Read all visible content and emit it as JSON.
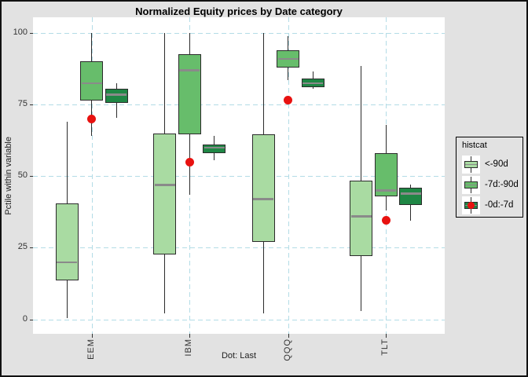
{
  "window": {
    "background": "#e2e2e2",
    "border_color": "#111111"
  },
  "chart_data": {
    "type": "boxplot",
    "title": "Normalized Equity prices by Date category",
    "ylabel": "Pctile within variable",
    "caption": "Dot: Last",
    "ylim": [
      0,
      100
    ],
    "yticks": [
      0,
      25,
      50,
      75,
      100
    ],
    "categories": [
      "EEM",
      "IBM",
      "QQQ",
      "TLT"
    ],
    "grid": "major gridlines, dashed light blue, on white panel",
    "panel_background": "#ffffff",
    "gridline_color": "#b3dce6",
    "legend": {
      "title": "histcat",
      "position": "right",
      "entries": [
        {
          "label": "<-90d",
          "fill": "#a9dba2"
        },
        {
          "label": "-7d:-90d",
          "fill": "#67bd6b"
        },
        {
          "label": "-0d:-7d",
          "fill": "#1f8745",
          "dot_color": "#e81210"
        }
      ]
    },
    "series": [
      {
        "name": "<-90d",
        "fill": "#a9dba2",
        "boxes": [
          {
            "category": "EEM",
            "whisker_low": 0.5,
            "q1": 13.5,
            "median": 20,
            "q3": 40.5,
            "whisker_high": 69
          },
          {
            "category": "IBM",
            "whisker_low": 2,
            "q1": 22.5,
            "median": 47,
            "q3": 65,
            "whisker_high": 100
          },
          {
            "category": "QQQ",
            "whisker_low": 2,
            "q1": 27,
            "median": 42,
            "q3": 64.5,
            "whisker_high": 100
          },
          {
            "category": "TLT",
            "whisker_low": 3,
            "q1": 22,
            "median": 36,
            "q3": 48.5,
            "whisker_high": 88.5
          }
        ]
      },
      {
        "name": "-7d:-90d",
        "fill": "#67bd6b",
        "boxes": [
          {
            "category": "EEM",
            "whisker_low": 64,
            "q1": 76.5,
            "median": 82.5,
            "q3": 90,
            "whisker_high": 100
          },
          {
            "category": "IBM",
            "whisker_low": 43.5,
            "q1": 64.5,
            "median": 87,
            "q3": 92.5,
            "whisker_high": 100
          },
          {
            "category": "QQQ",
            "whisker_low": 83.5,
            "q1": 88,
            "median": 91,
            "q3": 94,
            "whisker_high": 99
          },
          {
            "category": "TLT",
            "whisker_low": 38,
            "q1": 43,
            "median": 45,
            "q3": 58,
            "whisker_high": 68
          }
        ]
      },
      {
        "name": "-0d:-7d",
        "fill": "#1f8745",
        "boxes": [
          {
            "category": "EEM",
            "whisker_low": 70.5,
            "q1": 75.5,
            "median": 78.5,
            "q3": 80.5,
            "whisker_high": 82.5
          },
          {
            "category": "IBM",
            "whisker_low": 55.5,
            "q1": 58,
            "median": 60,
            "q3": 61,
            "whisker_high": 64
          },
          {
            "category": "QQQ",
            "whisker_low": 80.5,
            "q1": 81,
            "median": 82.5,
            "q3": 84,
            "whisker_high": 86.5
          },
          {
            "category": "TLT",
            "whisker_low": 34.5,
            "q1": 40,
            "median": 44,
            "q3": 46,
            "whisker_high": 47
          }
        ]
      }
    ],
    "points": {
      "name": "Last",
      "color": "#e81210",
      "values": [
        {
          "category": "EEM",
          "value": 70
        },
        {
          "category": "IBM",
          "value": 55
        },
        {
          "category": "QQQ",
          "value": 76.5
        },
        {
          "category": "TLT",
          "value": 34.5
        }
      ]
    }
  }
}
